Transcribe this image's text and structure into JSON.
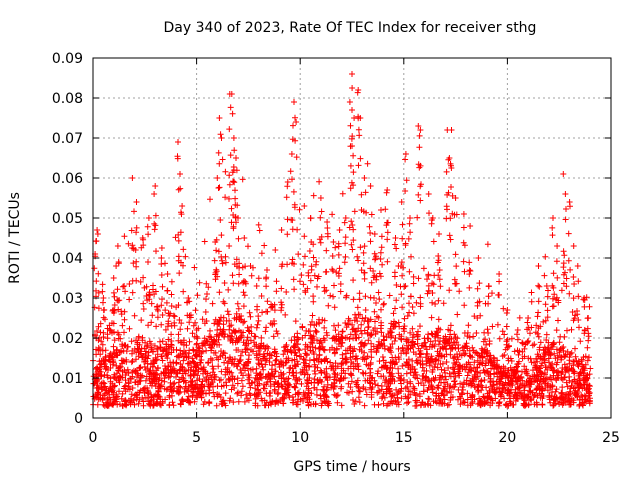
{
  "chart_data": {
    "type": "scatter",
    "title": "Day 340 of 2023, Rate Of TEC Index for receiver sthg",
    "xlabel": "GPS time / hours",
    "ylabel": "ROTI / TECUs",
    "xlim": [
      0,
      25
    ],
    "ylim": [
      0,
      0.09
    ],
    "xticks": [
      0,
      5,
      10,
      15,
      20,
      25
    ],
    "yticks": [
      0,
      0.01,
      0.02,
      0.03,
      0.04,
      0.05,
      0.06,
      0.07,
      0.08,
      0.09
    ],
    "ytick_labels": [
      "0",
      "0.01",
      "0.02",
      "0.03",
      "0.04",
      "0.05",
      "0.06",
      "0.07",
      "0.08",
      "0.09"
    ],
    "grid": true,
    "marker": "+",
    "color": "#ff0000",
    "series": [
      {
        "name": "",
        "x_start": 0,
        "x_end": 24,
        "points": [
          [
            0.1,
            0.041
          ],
          [
            0.2,
            0.047
          ],
          [
            0.3,
            0.02
          ],
          [
            0.5,
            0.03
          ],
          [
            1.0,
            0.035
          ],
          [
            1.2,
            0.043
          ],
          [
            1.5,
            0.033
          ],
          [
            1.9,
            0.06
          ],
          [
            2.1,
            0.054
          ],
          [
            2.4,
            0.045
          ],
          [
            2.7,
            0.05
          ],
          [
            3.0,
            0.058
          ],
          [
            3.3,
            0.04
          ],
          [
            3.6,
            0.036
          ],
          [
            3.8,
            0.028
          ],
          [
            4.1,
            0.069
          ],
          [
            4.2,
            0.061
          ],
          [
            4.3,
            0.053
          ],
          [
            4.6,
            0.03
          ],
          [
            5.0,
            0.022
          ],
          [
            5.5,
            0.031
          ],
          [
            5.9,
            0.044
          ],
          [
            6.0,
            0.06
          ],
          [
            6.1,
            0.075
          ],
          [
            6.2,
            0.07
          ],
          [
            6.6,
            0.081
          ],
          [
            6.7,
            0.081
          ],
          [
            6.8,
            0.07
          ],
          [
            6.9,
            0.065
          ],
          [
            6.8,
            0.059
          ],
          [
            7.0,
            0.05
          ],
          [
            7.3,
            0.045
          ],
          [
            7.6,
            0.038
          ],
          [
            7.9,
            0.033
          ],
          [
            8.4,
            0.037
          ],
          [
            8.8,
            0.042
          ],
          [
            9.1,
            0.047
          ],
          [
            9.4,
            0.059
          ],
          [
            9.6,
            0.066
          ],
          [
            9.7,
            0.079
          ],
          [
            9.8,
            0.074
          ],
          [
            10.2,
            0.053
          ],
          [
            10.5,
            0.05
          ],
          [
            11.0,
            0.055
          ],
          [
            11.3,
            0.049
          ],
          [
            11.6,
            0.044
          ],
          [
            11.9,
            0.047
          ],
          [
            12.2,
            0.05
          ],
          [
            12.5,
            0.086
          ],
          [
            12.4,
            0.079
          ],
          [
            12.6,
            0.075
          ],
          [
            12.5,
            0.068
          ],
          [
            12.8,
            0.082
          ],
          [
            12.9,
            0.075
          ],
          [
            13.1,
            0.06
          ],
          [
            13.4,
            0.058
          ],
          [
            13.6,
            0.046
          ],
          [
            13.9,
            0.052
          ],
          [
            14.2,
            0.057
          ],
          [
            14.6,
            0.045
          ],
          [
            14.9,
            0.054
          ],
          [
            15.1,
            0.066
          ],
          [
            15.3,
            0.05
          ],
          [
            15.7,
            0.073
          ],
          [
            15.8,
            0.072
          ],
          [
            16.2,
            0.056
          ],
          [
            16.4,
            0.05
          ],
          [
            16.7,
            0.046
          ],
          [
            17.1,
            0.072
          ],
          [
            17.3,
            0.072
          ],
          [
            17.2,
            0.065
          ],
          [
            17.5,
            0.055
          ],
          [
            17.9,
            0.051
          ],
          [
            18.2,
            0.048
          ],
          [
            18.6,
            0.04
          ],
          [
            19.1,
            0.033
          ],
          [
            19.6,
            0.036
          ],
          [
            20.0,
            0.027
          ],
          [
            20.5,
            0.022
          ],
          [
            21.0,
            0.025
          ],
          [
            21.5,
            0.038
          ],
          [
            21.9,
            0.033
          ],
          [
            22.2,
            0.05
          ],
          [
            22.4,
            0.043
          ],
          [
            22.7,
            0.061
          ],
          [
            22.8,
            0.056
          ],
          [
            23.0,
            0.054
          ],
          [
            23.2,
            0.043
          ],
          [
            23.4,
            0.038
          ],
          [
            23.7,
            0.03
          ],
          [
            23.9,
            0.025
          ]
        ],
        "density_profile": [
          [
            0,
            0.012
          ],
          [
            1,
            0.016
          ],
          [
            2,
            0.02
          ],
          [
            3,
            0.018
          ],
          [
            4,
            0.02
          ],
          [
            5,
            0.016
          ],
          [
            6,
            0.024
          ],
          [
            7,
            0.026
          ],
          [
            8,
            0.018
          ],
          [
            9,
            0.016
          ],
          [
            10,
            0.022
          ],
          [
            11,
            0.024
          ],
          [
            12,
            0.022
          ],
          [
            13,
            0.026
          ],
          [
            14,
            0.024
          ],
          [
            15,
            0.022
          ],
          [
            16,
            0.02
          ],
          [
            17,
            0.022
          ],
          [
            18,
            0.018
          ],
          [
            19,
            0.016
          ],
          [
            20,
            0.011
          ],
          [
            21,
            0.012
          ],
          [
            22,
            0.018
          ],
          [
            23,
            0.016
          ],
          [
            24,
            0.01
          ]
        ]
      }
    ]
  }
}
